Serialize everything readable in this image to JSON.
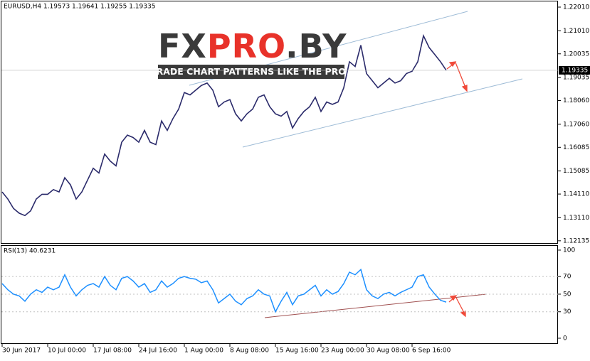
{
  "header": "EURUSD,H4  1.19573 1.19641 1.19255 1.19335",
  "last_price": "1.19335",
  "watermark": {
    "parts": [
      "FX",
      "PRO",
      ".BY"
    ],
    "tagline": "TRADE CHART PATTERNS LIKE THE PROS"
  },
  "chart_data": [
    {
      "type": "line",
      "title": "EURUSD,H4",
      "color": "#2b2b6b",
      "values": [
        1.142,
        1.139,
        1.135,
        1.133,
        1.132,
        1.134,
        1.139,
        1.141,
        1.141,
        1.143,
        1.142,
        1.148,
        1.145,
        1.139,
        1.142,
        1.147,
        1.152,
        1.15,
        1.158,
        1.155,
        1.153,
        1.163,
        1.166,
        1.165,
        1.163,
        1.168,
        1.163,
        1.162,
        1.172,
        1.168,
        1.173,
        1.177,
        1.184,
        1.183,
        1.185,
        1.187,
        1.188,
        1.185,
        1.178,
        1.18,
        1.181,
        1.175,
        1.172,
        1.175,
        1.177,
        1.182,
        1.183,
        1.178,
        1.175,
        1.174,
        1.176,
        1.169,
        1.173,
        1.176,
        1.178,
        1.182,
        1.176,
        1.18,
        1.179,
        1.18,
        1.186,
        1.197,
        1.195,
        1.204,
        1.192,
        1.189,
        1.186,
        1.188,
        1.19,
        1.188,
        1.189,
        1.192,
        1.193,
        1.197,
        1.208,
        1.203,
        1.2,
        1.197,
        1.1934
      ],
      "ylim": [
        1.1201,
        1.2225
      ],
      "yticks": [
        {
          "value": 1.2201,
          "label": "1.22010"
        },
        {
          "value": 1.2101,
          "label": "1.21010"
        },
        {
          "value": 1.20035,
          "label": "1.20035"
        },
        {
          "value": 1.19035,
          "label": "1.19035"
        },
        {
          "value": 1.1806,
          "label": "1.18060"
        },
        {
          "value": 1.1706,
          "label": "1.17060"
        },
        {
          "value": 1.16085,
          "label": "1.16085"
        },
        {
          "value": 1.15085,
          "label": "1.15085"
        },
        {
          "value": 1.1411,
          "label": "1.14110"
        },
        {
          "value": 1.1311,
          "label": "1.13110"
        },
        {
          "value": 1.12135,
          "label": "1.12135"
        }
      ]
    },
    {
      "type": "line",
      "title": "RSI(13) 40.6231",
      "color": "#1e90ff",
      "categories": [
        "30 Jun 2017",
        null,
        null,
        null,
        null,
        null,
        null,
        null,
        "10 Jul 00:00",
        null,
        null,
        null,
        null,
        null,
        null,
        null,
        "17 Jul 08:00",
        null,
        null,
        null,
        null,
        null,
        null,
        null,
        "24 Jul 16:00",
        null,
        null,
        null,
        null,
        null,
        null,
        null,
        "1 Aug 00:00",
        null,
        null,
        null,
        null,
        null,
        null,
        null,
        "8 Aug 08:00",
        null,
        null,
        null,
        null,
        null,
        null,
        null,
        "15 Aug 16:00",
        null,
        null,
        null,
        null,
        null,
        null,
        null,
        "23 Aug 00:00",
        null,
        null,
        null,
        null,
        null,
        null,
        null,
        "30 Aug 08:00",
        null,
        null,
        null,
        null,
        null,
        null,
        null,
        "6 Sep 16:00",
        null,
        null,
        null,
        null,
        null,
        null
      ],
      "values": [
        62,
        55,
        50,
        48,
        42,
        50,
        55,
        52,
        58,
        55,
        58,
        72,
        58,
        48,
        55,
        60,
        62,
        58,
        70,
        60,
        55,
        68,
        70,
        65,
        58,
        62,
        52,
        55,
        65,
        58,
        62,
        68,
        70,
        68,
        67,
        63,
        65,
        55,
        40,
        45,
        50,
        42,
        38,
        45,
        48,
        55,
        50,
        48,
        30,
        42,
        52,
        38,
        48,
        50,
        55,
        60,
        48,
        55,
        50,
        53,
        62,
        75,
        72,
        78,
        55,
        48,
        45,
        50,
        52,
        48,
        52,
        55,
        58,
        70,
        72,
        58,
        50,
        43,
        41
      ],
      "ylim": [
        -6.5,
        104.8
      ],
      "yticks": [
        0,
        30,
        50,
        70,
        100
      ]
    }
  ]
}
